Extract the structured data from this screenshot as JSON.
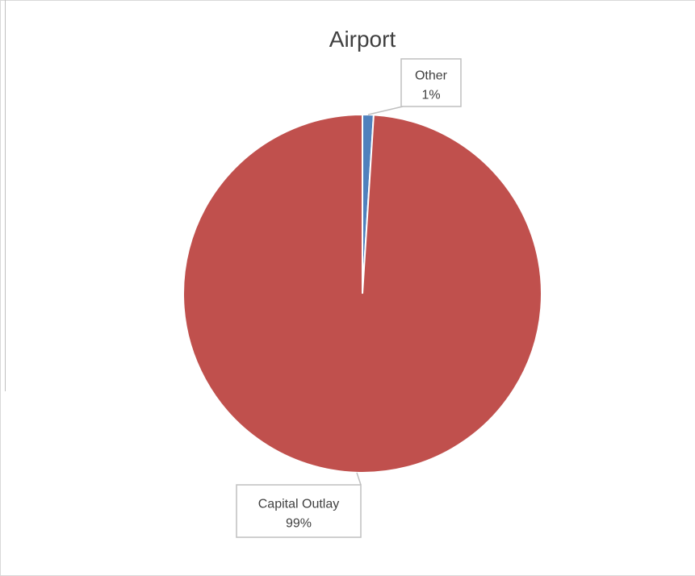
{
  "chart_data": {
    "type": "pie",
    "title": "Airport",
    "categories": [
      "Other",
      "Capital Outlay"
    ],
    "values": [
      1,
      99
    ],
    "data_labels": [
      {
        "name": "Other",
        "pct": "1%"
      },
      {
        "name": "Capital Outlay",
        "pct": "99%"
      }
    ],
    "colors": [
      "#4f81bd",
      "#c0504d"
    ],
    "label_border_color": "#bfbfbf",
    "legend": "none",
    "start_angle_deg": 0
  }
}
